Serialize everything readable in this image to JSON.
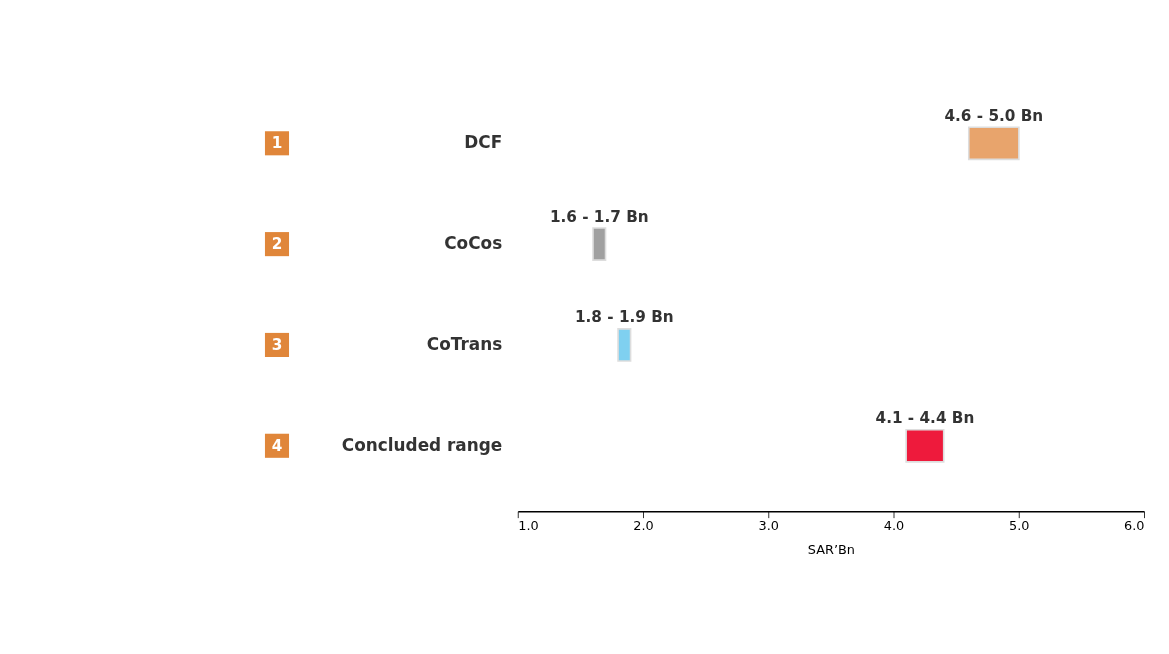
{
  "chart_data": {
    "type": "bar",
    "orientation": "horizontal",
    "categories": [
      "DCF",
      "CoCos",
      "CoTrans",
      "Concluded range"
    ],
    "base": [
      4.6,
      1.6,
      1.8,
      4.1
    ],
    "values": [
      0.4,
      0.1,
      0.1,
      0.3
    ],
    "colors": [
      "#e8a46c",
      "#a0a0a0",
      "#7fd0f0",
      "#ee1a3c"
    ],
    "xlabel": "SAR’Bn",
    "xlim": [
      1,
      6
    ],
    "xticks": [
      {
        "value": 1,
        "label": "1.0"
      },
      {
        "value": 2,
        "label": "2.0"
      },
      {
        "value": 3,
        "label": "3.0"
      },
      {
        "value": 4,
        "label": "4.0"
      },
      {
        "value": 5,
        "label": "5.0"
      },
      {
        "value": 6,
        "label": "6.0"
      }
    ],
    "annotations": [
      "1",
      "2",
      "3",
      "4",
      "4.6 - 5.0 Bn",
      "1.6 - 1.7 Bn",
      "1.8 - 1.9 Bn",
      "4.1 - 4.4 Bn"
    ],
    "grid": false
  }
}
